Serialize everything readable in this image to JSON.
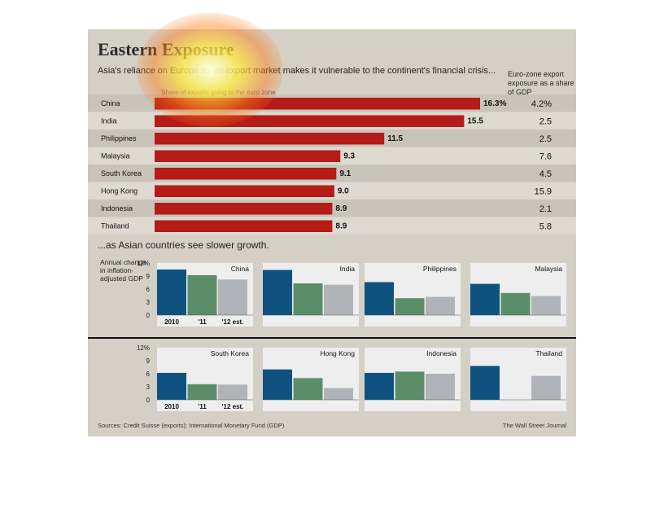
{
  "title": "Eastern Exposure",
  "subtitle": "Asia's reliance on Europe as an export market makes it vulnerable to the continent's financial crisis...",
  "right_column_header": "Euro-zone export exposure as a share of GDP",
  "bar_axis_label": "Share of exports going to the euro zone",
  "growth_title": "...as Asian countries see slower growth.",
  "growth_ylabel": "Annual change in inflation-adjusted GDP",
  "source": "Sources: Credit Suisse (exports); International Monetary Fund (GDP)",
  "brand": "The Wall Street Journal",
  "colors": {
    "bar": "#b51b17",
    "row_dark": "#c8c4ba",
    "row_light": "#dedad2",
    "s2010": "#0f527f",
    "s2011": "#5c8d69",
    "s2012": "#b0b3b7",
    "mini_bg": "#eeeeee"
  },
  "chart_data": [
    {
      "type": "bar",
      "orientation": "horizontal",
      "categories": [
        "China",
        "India",
        "Philippines",
        "Malaysia",
        "South Korea",
        "Hong Kong",
        "Indonesia",
        "Thailand"
      ],
      "values": [
        16.3,
        15.5,
        11.5,
        9.3,
        9.1,
        9.0,
        8.9,
        8.9
      ],
      "value_labels": [
        "16.3%",
        "15.5",
        "11.5",
        "9.3",
        "9.1",
        "9.0",
        "8.9",
        "8.9"
      ],
      "xlim": [
        0,
        16.3
      ],
      "side_values": [
        "4.2%",
        "2.5",
        "2.5",
        "7.6",
        "4.5",
        "15.9",
        "2.1",
        "5.8"
      ]
    },
    {
      "type": "bar",
      "categories": [
        "2010",
        "'11",
        "'12 est."
      ],
      "ylim": [
        0,
        12
      ],
      "yticks": [
        "0",
        "3",
        "6",
        "9",
        "12%"
      ],
      "panels": [
        {
          "name": "China",
          "values": [
            10.5,
            9.2,
            8.2
          ]
        },
        {
          "name": "India",
          "values": [
            10.4,
            7.3,
            7.0
          ]
        },
        {
          "name": "Philippines",
          "values": [
            7.6,
            3.9,
            4.2
          ]
        },
        {
          "name": "Malaysia",
          "values": [
            7.2,
            5.1,
            4.4
          ]
        },
        {
          "name": "South Korea",
          "values": [
            6.2,
            3.6,
            3.5
          ]
        },
        {
          "name": "Hong Kong",
          "values": [
            7.0,
            5.0,
            2.7
          ]
        },
        {
          "name": "Indonesia",
          "values": [
            6.2,
            6.5,
            6.0
          ]
        },
        {
          "name": "Thailand",
          "values": [
            7.8,
            null,
            5.5
          ]
        }
      ]
    }
  ]
}
